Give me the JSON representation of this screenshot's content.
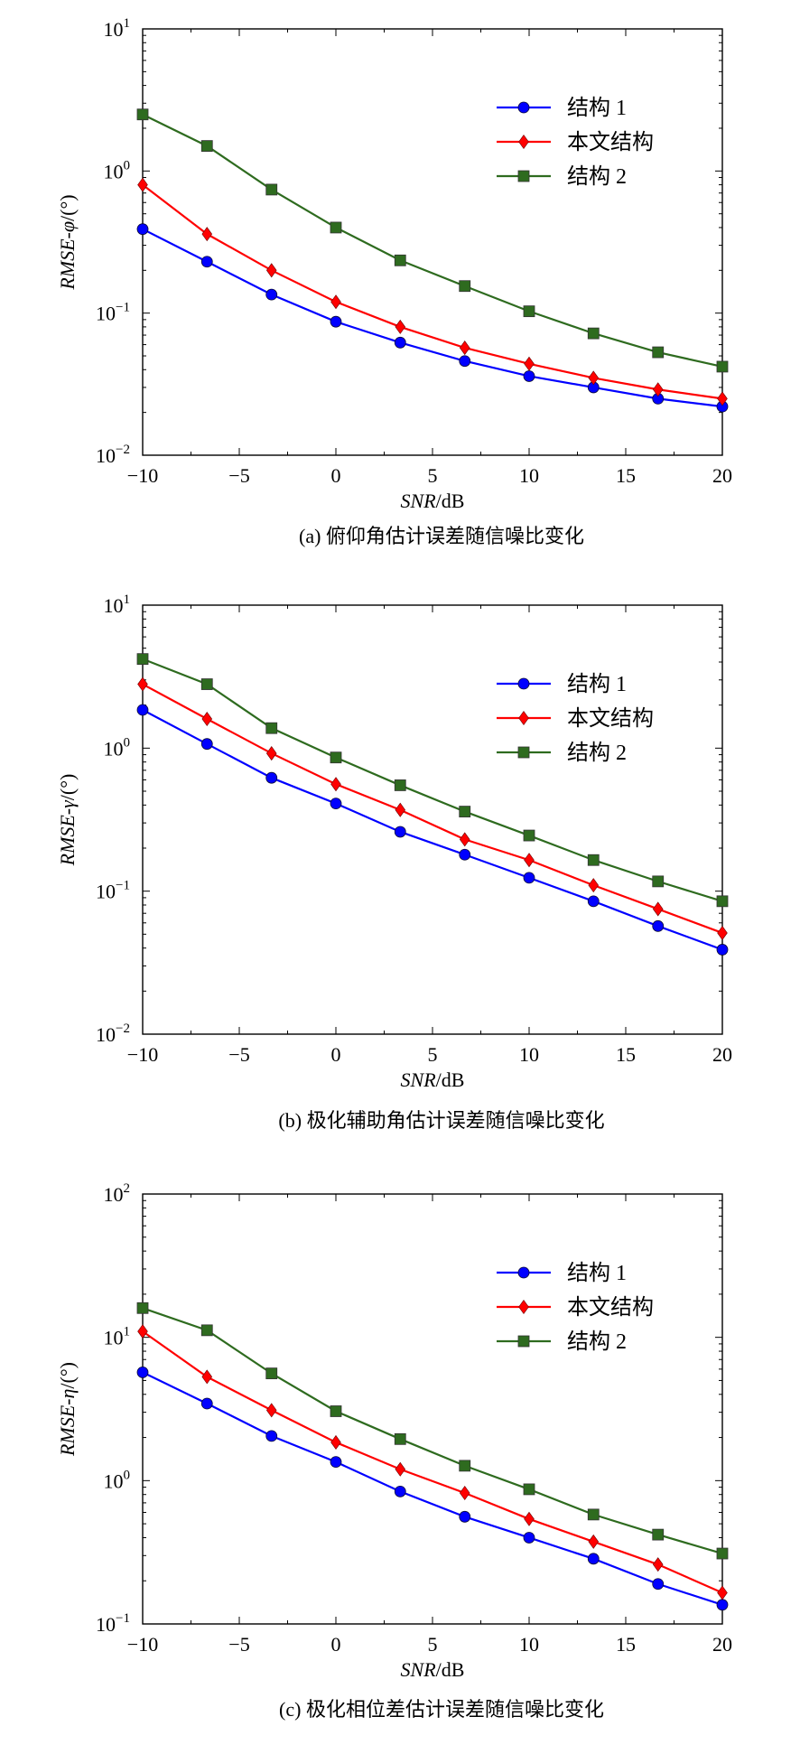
{
  "chart_data": [
    {
      "type": "line",
      "yscale": "log",
      "xlabel_italic": "SNR",
      "xlabel_rest": "/dB",
      "ylabel_italic": "RMSE-φ",
      "ylabel_rest": "/(°)",
      "caption": "(a) 俯仰角估计误差随信噪比变化",
      "xlim": [
        -10,
        20
      ],
      "ylim": [
        0.01,
        10
      ],
      "x_ticks": [
        "−10",
        "−5",
        "0",
        "5",
        "10",
        "15",
        "20"
      ],
      "y_ticks": [
        {
          "base": "10",
          "exp": "−2"
        },
        {
          "base": "10",
          "exp": "−1"
        },
        {
          "base": "10",
          "exp": "0"
        },
        {
          "base": "10",
          "exp": "1"
        }
      ],
      "legend_position": "top-right",
      "x": [
        -10,
        -6.67,
        -3.33,
        0,
        3.33,
        6.67,
        10,
        13.33,
        16.67,
        20
      ],
      "series": [
        {
          "name": "结构 1",
          "color": "#0000ff",
          "marker": "circle",
          "values": [
            0.39,
            0.23,
            0.135,
            0.087,
            0.062,
            0.046,
            0.036,
            0.03,
            0.025,
            0.022
          ]
        },
        {
          "name": "本文结构",
          "color": "#ff0000",
          "marker": "diamond",
          "values": [
            0.8,
            0.36,
            0.2,
            0.12,
            0.08,
            0.057,
            0.044,
            0.035,
            0.029,
            0.025
          ]
        },
        {
          "name": "结构 2",
          "color": "#2e6b1f",
          "marker": "square",
          "values": [
            2.5,
            1.5,
            0.74,
            0.4,
            0.235,
            0.155,
            0.103,
            0.072,
            0.053,
            0.042
          ]
        }
      ]
    },
    {
      "type": "line",
      "yscale": "log",
      "xlabel_italic": "SNR",
      "xlabel_rest": "/dB",
      "ylabel_italic": "RMSE-γ",
      "ylabel_rest": "/(°)",
      "caption": "(b) 极化辅助角估计误差随信噪比变化",
      "xlim": [
        -10,
        20
      ],
      "ylim": [
        0.01,
        10
      ],
      "x_ticks": [
        "−10",
        "−5",
        "0",
        "5",
        "10",
        "15",
        "20"
      ],
      "y_ticks": [
        {
          "base": "10",
          "exp": "−2"
        },
        {
          "base": "10",
          "exp": "−1"
        },
        {
          "base": "10",
          "exp": "0"
        },
        {
          "base": "10",
          "exp": "1"
        }
      ],
      "legend_position": "top-right",
      "x": [
        -10,
        -6.67,
        -3.33,
        0,
        3.33,
        6.67,
        10,
        13.33,
        16.67,
        20
      ],
      "series": [
        {
          "name": "结构 1",
          "color": "#0000ff",
          "marker": "circle",
          "values": [
            1.85,
            1.07,
            0.62,
            0.41,
            0.26,
            0.18,
            0.124,
            0.085,
            0.057,
            0.039
          ]
        },
        {
          "name": "本文结构",
          "color": "#ff0000",
          "marker": "diamond",
          "values": [
            2.8,
            1.6,
            0.92,
            0.56,
            0.37,
            0.23,
            0.165,
            0.11,
            0.075,
            0.051
          ]
        },
        {
          "name": "结构 2",
          "color": "#2e6b1f",
          "marker": "square",
          "values": [
            4.2,
            2.8,
            1.38,
            0.86,
            0.55,
            0.36,
            0.245,
            0.165,
            0.117,
            0.085
          ]
        }
      ]
    },
    {
      "type": "line",
      "yscale": "log",
      "xlabel_italic": "SNR",
      "xlabel_rest": "/dB",
      "ylabel_italic": "RMSE-η",
      "ylabel_rest": "/(°)",
      "caption": "(c) 极化相位差估计误差随信噪比变化",
      "xlim": [
        -10,
        20
      ],
      "ylim": [
        0.1,
        100
      ],
      "x_ticks": [
        "−10",
        "−5",
        "0",
        "5",
        "10",
        "15",
        "20"
      ],
      "y_ticks": [
        {
          "base": "10",
          "exp": "−1"
        },
        {
          "base": "10",
          "exp": "0"
        },
        {
          "base": "10",
          "exp": "1"
        },
        {
          "base": "10",
          "exp": "2"
        }
      ],
      "legend_position": "top-right",
      "x": [
        -10,
        -6.67,
        -3.33,
        0,
        3.33,
        6.67,
        10,
        13.33,
        16.67,
        20
      ],
      "series": [
        {
          "name": "结构 1",
          "color": "#0000ff",
          "marker": "circle",
          "values": [
            5.7,
            3.45,
            2.05,
            1.35,
            0.84,
            0.56,
            0.4,
            0.285,
            0.19,
            0.136
          ]
        },
        {
          "name": "本文结构",
          "color": "#ff0000",
          "marker": "diamond",
          "values": [
            11,
            5.3,
            3.1,
            1.85,
            1.2,
            0.82,
            0.54,
            0.375,
            0.26,
            0.165
          ]
        },
        {
          "name": "结构 2",
          "color": "#2e6b1f",
          "marker": "square",
          "values": [
            16,
            11.2,
            5.6,
            3.05,
            1.95,
            1.27,
            0.87,
            0.58,
            0.42,
            0.31
          ]
        }
      ]
    }
  ]
}
